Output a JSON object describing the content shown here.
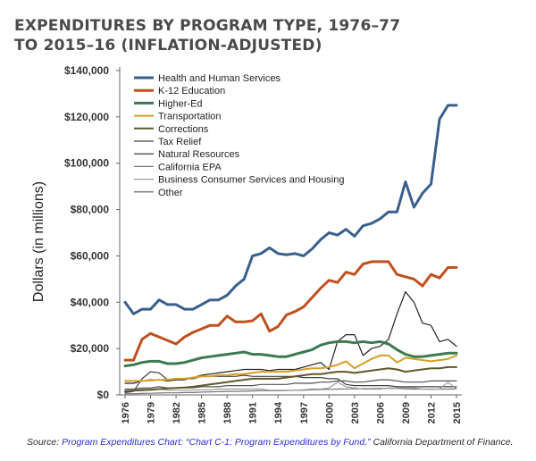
{
  "title": {
    "line1": "EXPENDITURES BY PROGRAM TYPE, 1976–77",
    "line2": "TO 2015–16 (INFLATION-ADJUSTED)"
  },
  "source": {
    "label": "Source:",
    "link_text": "Program Expenditures Chart: “Chart C-1: Program Expenditures by Fund,”",
    "rest": " California Department of Finance."
  },
  "chart_data": {
    "type": "line",
    "title": "EXPENDITURES BY PROGRAM TYPE, 1976–77 TO 2015–16 (INFLATION-ADJUSTED)",
    "xlabel": "",
    "ylabel": "Dollars (in millions)",
    "ylim": [
      0,
      140000
    ],
    "yticks": [
      0,
      20000,
      40000,
      60000,
      80000,
      100000,
      120000,
      140000
    ],
    "ytick_labels": [
      "$0",
      "$20,000",
      "$40,000",
      "$60,000",
      "$80,000",
      "$100,000",
      "$120,000",
      "$140,000"
    ],
    "xtick_labels": [
      "1976",
      "1979",
      "1982",
      "1985",
      "1988",
      "1991",
      "1994",
      "1997",
      "2000",
      "2003",
      "2006",
      "2009",
      "2012",
      "2015"
    ],
    "legend_position": "top-left",
    "x": [
      1976,
      1977,
      1978,
      1979,
      1980,
      1981,
      1982,
      1983,
      1984,
      1985,
      1986,
      1987,
      1988,
      1989,
      1990,
      1991,
      1992,
      1993,
      1994,
      1995,
      1996,
      1997,
      1998,
      1999,
      2000,
      2001,
      2002,
      2003,
      2004,
      2005,
      2006,
      2007,
      2008,
      2009,
      2010,
      2011,
      2012,
      2013,
      2014,
      2015
    ],
    "series": [
      {
        "name": "Health and Human Services",
        "color": "#3a5f8c",
        "width": 3,
        "values": [
          40000,
          35000,
          37000,
          37000,
          41000,
          39000,
          39000,
          37000,
          37000,
          39000,
          41000,
          41000,
          43000,
          47000,
          50000,
          60000,
          61000,
          63500,
          61000,
          60500,
          61000,
          60000,
          63000,
          67000,
          70000,
          69000,
          71500,
          68500,
          73000,
          74000,
          76000,
          79000,
          79000,
          92000,
          81000,
          87000,
          91000,
          119000,
          125000,
          125000
        ]
      },
      {
        "name": "K-12 Education",
        "color": "#c0501f",
        "width": 3,
        "values": [
          15000,
          15000,
          24000,
          26500,
          25000,
          23500,
          22000,
          25000,
          27000,
          28500,
          30000,
          30000,
          34000,
          31500,
          31500,
          32000,
          35000,
          27500,
          29500,
          34500,
          36000,
          38000,
          42000,
          46000,
          49500,
          48500,
          53000,
          52000,
          56500,
          57500,
          57500,
          57500,
          52000,
          51000,
          50000,
          47000,
          52000,
          50500,
          55000,
          55000
        ]
      },
      {
        "name": "Higher-Ed",
        "color": "#3d7a4f",
        "width": 3,
        "values": [
          12500,
          13000,
          14000,
          14500,
          14500,
          13500,
          13500,
          14000,
          15000,
          16000,
          16500,
          17000,
          17500,
          18000,
          18500,
          17500,
          17500,
          17000,
          16500,
          16500,
          17500,
          18500,
          19500,
          21500,
          22500,
          23000,
          23000,
          22500,
          23000,
          22500,
          23000,
          22000,
          19500,
          17500,
          16500,
          16500,
          17000,
          17500,
          18000,
          18000
        ]
      },
      {
        "name": "Transportation",
        "color": "#d4a028",
        "width": 2,
        "values": [
          6000,
          6000,
          6000,
          6200,
          6500,
          6500,
          7000,
          7000,
          7500,
          8000,
          8000,
          8500,
          8500,
          9000,
          9000,
          9500,
          10000,
          10000,
          10000,
          10000,
          10500,
          11000,
          11500,
          11500,
          12000,
          13000,
          14500,
          11500,
          13500,
          15500,
          17000,
          17000,
          14000,
          16000,
          15500,
          15000,
          14500,
          15000,
          15500,
          17000
        ]
      },
      {
        "name": "Corrections",
        "color": "#5c5a2a",
        "width": 2,
        "values": [
          1500,
          1800,
          2000,
          2200,
          2500,
          2800,
          3000,
          3200,
          3500,
          4000,
          4500,
          5000,
          5500,
          6000,
          6500,
          7000,
          7000,
          7000,
          7000,
          7500,
          8000,
          8500,
          9000,
          9000,
          9500,
          10000,
          10000,
          9500,
          10000,
          10500,
          11000,
          11500,
          11000,
          10000,
          10500,
          11000,
          11500,
          11500,
          12000,
          12000
        ]
      },
      {
        "name": "Tax Relief",
        "color": "#444444",
        "width": 1.2,
        "values": [
          1000,
          1500,
          7000,
          10000,
          9500,
          6500,
          7000,
          7000,
          7000,
          8000,
          8000,
          8000,
          8000,
          8000,
          8500,
          8000,
          8000,
          8000,
          8000,
          8000,
          8000,
          7500,
          7500,
          7500,
          7000,
          7000,
          4500,
          4000,
          4000,
          4000,
          4000,
          4000,
          3500,
          3500,
          3500,
          3500,
          3500,
          3500,
          3500,
          3500
        ]
      },
      {
        "name": "Natural Resources",
        "color": "#222222",
        "width": 1.2,
        "values": [
          5000,
          5000,
          6000,
          6500,
          6500,
          6000,
          6500,
          6500,
          7500,
          8500,
          9000,
          9500,
          10000,
          10500,
          11000,
          11000,
          11000,
          10500,
          11000,
          11000,
          11000,
          12000,
          13000,
          14000,
          11000,
          23000,
          26000,
          26000,
          17000,
          20000,
          21000,
          24000,
          35000,
          44500,
          40000,
          31000,
          30000,
          23000,
          24000,
          21000
        ]
      },
      {
        "name": "California EPA",
        "color": "#777777",
        "width": 1.2,
        "values": [
          500,
          500,
          600,
          700,
          800,
          900,
          900,
          1000,
          1000,
          1200,
          1300,
          1400,
          1500,
          1500,
          1600,
          1700,
          1800,
          1800,
          1800,
          1900,
          2000,
          2000,
          2200,
          2300,
          2400,
          2500,
          2600,
          2600,
          2700,
          2700,
          2800,
          2800,
          2800,
          2600,
          2500,
          2500,
          2400,
          2500,
          2500,
          2600
        ]
      },
      {
        "name": "Business Consumer Services and Housing",
        "color": "#9a9a9a",
        "width": 1.2,
        "values": [
          2000,
          2000,
          2500,
          2500,
          2500,
          2000,
          2000,
          2000,
          2000,
          2200,
          2200,
          2500,
          2500,
          2500,
          2500,
          2500,
          2500,
          2000,
          2000,
          2000,
          2000,
          2200,
          2500,
          2500,
          3000,
          5500,
          3500,
          3000,
          2500,
          2500,
          2500,
          3000,
          3000,
          3000,
          3000,
          2500,
          2500,
          2500,
          5500,
          2500
        ]
      },
      {
        "name": "Other",
        "color": "#555555",
        "width": 1.2,
        "values": [
          2500,
          2500,
          3000,
          3000,
          3500,
          3000,
          3000,
          3000,
          3000,
          3500,
          3500,
          3500,
          4000,
          4000,
          4000,
          4000,
          4500,
          4500,
          4500,
          4500,
          5000,
          5000,
          5000,
          5500,
          5500,
          6000,
          6000,
          5500,
          5500,
          6000,
          6500,
          6500,
          6000,
          5500,
          5500,
          5500,
          6000,
          6000,
          6000,
          6000
        ]
      }
    ]
  }
}
